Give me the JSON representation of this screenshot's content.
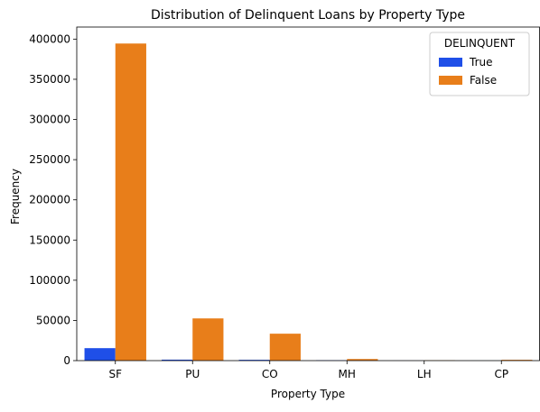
{
  "chart_data": {
    "type": "bar",
    "title": "Distribution of Delinquent Loans by Property Type",
    "xlabel": "Property Type",
    "ylabel": "Frequency",
    "categories": [
      "SF",
      "PU",
      "CO",
      "MH",
      "LH",
      "CP"
    ],
    "ylim": [
      0,
      415000
    ],
    "yticks": [
      0,
      50000,
      100000,
      150000,
      200000,
      250000,
      300000,
      350000,
      400000
    ],
    "grid": false,
    "legend": {
      "title": "DELINQUENT",
      "placement": "top-right"
    },
    "series": [
      {
        "name": "True",
        "color": "#1f4fe8",
        "values": [
          15500,
          1200,
          1000,
          400,
          30,
          10
        ]
      },
      {
        "name": "False",
        "color": "#e87e1a",
        "values": [
          394500,
          52500,
          33500,
          2000,
          300,
          1000
        ]
      }
    ]
  }
}
